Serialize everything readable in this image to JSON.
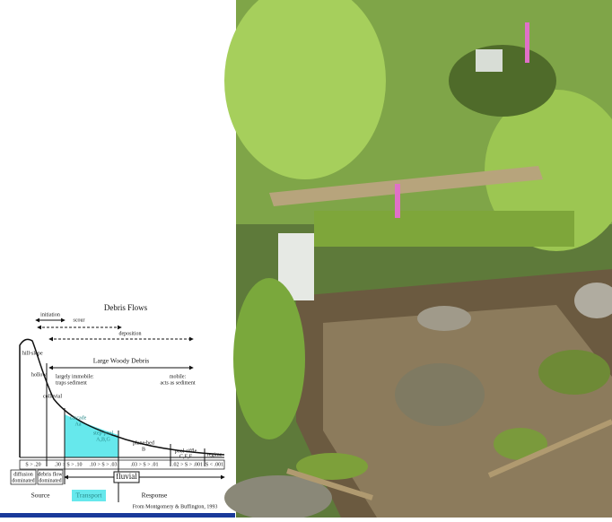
{
  "diagram": {
    "title": "Debris Flows",
    "debris_flow_zones": [
      "initiation",
      "scour",
      "deposition"
    ],
    "hillslope": "hill-slope",
    "hollow": "hollow",
    "lwd": {
      "title": "Large Woody Debris",
      "immobile": [
        "largely immobile:",
        "traps sediment"
      ],
      "mobile": [
        "mobile:",
        "acts as sediment"
      ]
    },
    "reaches": [
      {
        "name": "colluvial"
      },
      {
        "name": "cascade",
        "code": "Aa"
      },
      {
        "name": "step-pool",
        "code": "A,B,G"
      },
      {
        "name": "plane-bed",
        "code": "B"
      },
      {
        "name": "pool-riffle",
        "code": "C,E,F"
      },
      {
        "name": "regime"
      }
    ],
    "slopes": [
      "S > .20",
      ".30 > S > .10",
      ".10 > S > .03",
      ".03 > S > .01",
      ".02 > S > .001",
      "S < .001"
    ],
    "processes": [
      "diffusion",
      "dominated",
      "debris flow",
      "dominated",
      "fluvial"
    ],
    "zones": [
      "Source",
      "Transport",
      "Response"
    ],
    "citation": "From Montgomery & Buffington, 1993"
  }
}
